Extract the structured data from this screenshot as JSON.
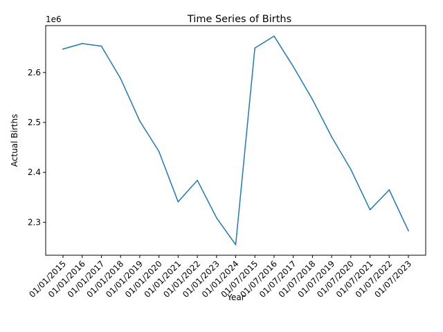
{
  "chart_data": {
    "type": "line",
    "title": "Time Series of Births",
    "xlabel": "Year",
    "ylabel": "Actual Births",
    "y_offset_label": "1e6",
    "ylim": [
      2234000,
      2694000
    ],
    "yticks": [
      {
        "value": 2300000,
        "label": "2.3"
      },
      {
        "value": 2400000,
        "label": "2.4"
      },
      {
        "value": 2500000,
        "label": "2.5"
      },
      {
        "value": 2600000,
        "label": "2.6"
      }
    ],
    "categories": [
      "01/01/2015",
      "01/01/2016",
      "01/01/2017",
      "01/01/2018",
      "01/01/2019",
      "01/01/2020",
      "01/01/2021",
      "01/01/2022",
      "01/01/2023",
      "01/01/2024",
      "01/07/2015",
      "01/07/2016",
      "01/07/2017",
      "01/07/2018",
      "01/07/2019",
      "01/07/2020",
      "01/07/2021",
      "01/07/2022",
      "01/07/2023"
    ],
    "series": [
      {
        "color": "#1f77b4",
        "values": [
          2647000,
          2658000,
          2653000,
          2588000,
          2503000,
          2442000,
          2341000,
          2384000,
          2309000,
          2255000,
          2649000,
          2673000,
          2612000,
          2546000,
          2471000,
          2406000,
          2325000,
          2365000,
          2283000
        ]
      }
    ],
    "grid": false,
    "legend": "none"
  }
}
